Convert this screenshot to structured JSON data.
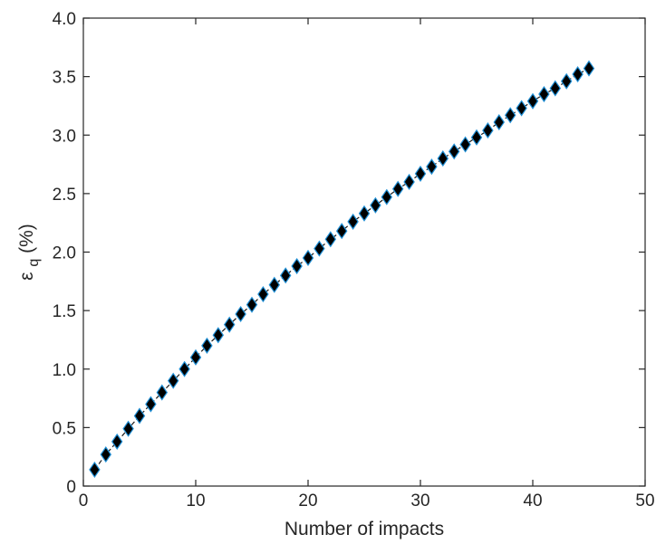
{
  "chart_data": {
    "type": "scatter",
    "title": "",
    "xlabel": "Number of impacts",
    "ylabel_main": "ε",
    "ylabel_subscript": "q",
    "ylabel_suffix": "(%)",
    "xlim": [
      0,
      50
    ],
    "ylim": [
      0,
      4.0
    ],
    "x_ticks": [
      0,
      10,
      20,
      30,
      40,
      50
    ],
    "x_tick_labels": [
      "0",
      "10",
      "20",
      "30",
      "40",
      "50"
    ],
    "y_ticks": [
      0,
      0.5,
      1.0,
      1.5,
      2.0,
      2.5,
      3.0,
      3.5,
      4.0
    ],
    "y_tick_labels": [
      "0",
      "0.5",
      "1.0",
      "1.5",
      "2.0",
      "2.5",
      "3.0",
      "3.5",
      "4.0"
    ],
    "grid": false,
    "legend": "none",
    "marker": "diamond",
    "marker_fill_color": "#000000",
    "marker_edge_color": "#1f8fd6",
    "line_color": "#1a1a1a",
    "line_style": "dashed",
    "series": [
      {
        "x": [
          1,
          2,
          3,
          4,
          5,
          6,
          7,
          8,
          9,
          10,
          11,
          12,
          13,
          14,
          15,
          16,
          17,
          18,
          19,
          20,
          21,
          22,
          23,
          24,
          25,
          26,
          27,
          28,
          29,
          30,
          31,
          32,
          33,
          34,
          35,
          36,
          37,
          38,
          39,
          40,
          41,
          42,
          43,
          44,
          45
        ],
        "y": [
          0.14,
          0.27,
          0.38,
          0.49,
          0.6,
          0.7,
          0.8,
          0.9,
          1.0,
          1.1,
          1.2,
          1.29,
          1.38,
          1.47,
          1.55,
          1.64,
          1.72,
          1.8,
          1.88,
          1.95,
          2.03,
          2.11,
          2.18,
          2.26,
          2.33,
          2.4,
          2.47,
          2.54,
          2.6,
          2.67,
          2.73,
          2.8,
          2.86,
          2.92,
          2.98,
          3.04,
          3.11,
          3.17,
          3.23,
          3.29,
          3.35,
          3.4,
          3.46,
          3.52,
          3.57
        ]
      }
    ]
  }
}
